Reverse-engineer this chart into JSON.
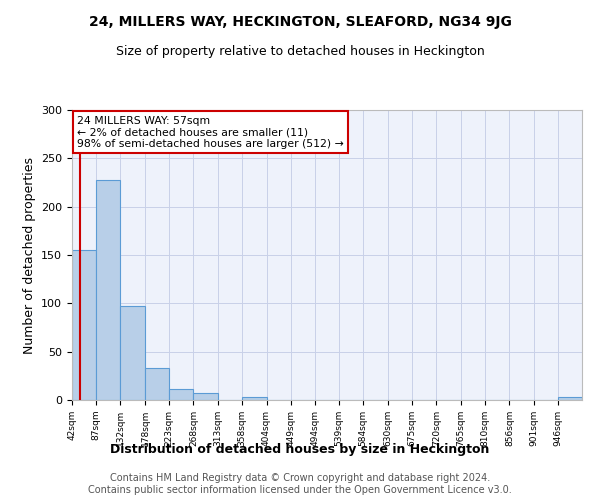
{
  "title": "24, MILLERS WAY, HECKINGTON, SLEAFORD, NG34 9JG",
  "subtitle": "Size of property relative to detached houses in Heckington",
  "xlabel": "Distribution of detached houses by size in Heckington",
  "ylabel": "Number of detached properties",
  "bar_values": [
    155,
    228,
    97,
    33,
    11,
    7,
    0,
    3,
    0,
    0,
    0,
    0,
    0,
    0,
    0,
    0,
    0,
    0,
    0,
    0,
    3
  ],
  "bin_edges": [
    42,
    87,
    132,
    178,
    223,
    268,
    313,
    358,
    404,
    449,
    494,
    539,
    584,
    630,
    675,
    720,
    765,
    810,
    856,
    901,
    946,
    991
  ],
  "bar_color": "#b8cfe8",
  "bar_edge_color": "#5b9bd5",
  "vline_x": 57,
  "vline_color": "#cc0000",
  "annotation_line1": "24 MILLERS WAY: 57sqm",
  "annotation_line2": "← 2% of detached houses are smaller (11)",
  "annotation_line3": "98% of semi-detached houses are larger (512) →",
  "annotation_box_color": "#ffffff",
  "annotation_box_edge_color": "#cc0000",
  "ylim": [
    0,
    300
  ],
  "yticks": [
    0,
    50,
    100,
    150,
    200,
    250,
    300
  ],
  "bg_color": "#eef2fb",
  "grid_color": "#c8d0e8",
  "footer_text": "Contains HM Land Registry data © Crown copyright and database right 2024.\nContains public sector information licensed under the Open Government Licence v3.0.",
  "title_fontsize": 10,
  "subtitle_fontsize": 9,
  "xlabel_fontsize": 9,
  "ylabel_fontsize": 9,
  "footer_fontsize": 7
}
